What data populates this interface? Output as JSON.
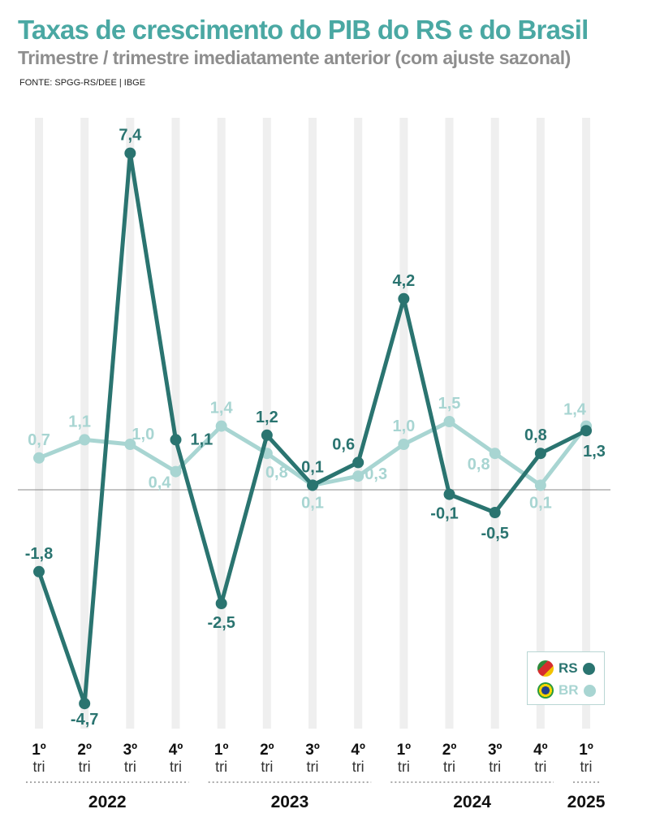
{
  "title": "Taxas de crescimento do PIB do RS e do Brasil",
  "subtitle": "Trimestre / trimestre imediatamente anterior (com ajuste sazonal)",
  "source": "FONTE: SPGG-RS/DEE | IBGE",
  "chart_data": {
    "type": "line",
    "quarters": [
      "1º",
      "2º",
      "3º",
      "4º",
      "1º",
      "2º",
      "3º",
      "4º",
      "1º",
      "2º",
      "3º",
      "4º",
      "1º"
    ],
    "quarter_suffix": "tri",
    "years": [
      {
        "label": "2022",
        "quarters": 4
      },
      {
        "label": "2023",
        "quarters": 4
      },
      {
        "label": "2024",
        "quarters": 4
      },
      {
        "label": "2025",
        "quarters": 1
      }
    ],
    "series": [
      {
        "name": "RS",
        "color": "#2a7470",
        "values": [
          -1.8,
          -4.7,
          7.4,
          1.1,
          -2.5,
          1.2,
          0.1,
          0.6,
          4.2,
          -0.1,
          -0.5,
          0.8,
          1.3
        ],
        "labels": [
          "-1,8",
          "-4,7",
          "7,4",
          "1,1",
          "-2,5",
          "1,2",
          "0,1",
          "0,6",
          "4,2",
          "-0,1",
          "-0,5",
          "0,8",
          "1,3"
        ]
      },
      {
        "name": "BR",
        "color": "#a8d5d2",
        "values": [
          0.7,
          1.1,
          1.0,
          0.4,
          1.4,
          0.8,
          0.1,
          0.3,
          1.0,
          1.5,
          0.8,
          0.1,
          1.4
        ],
        "labels": [
          "0,7",
          "1,1",
          "1,0",
          "0,4",
          "1,4",
          "0,8",
          "0,1",
          "0,3",
          "1,0",
          "1,5",
          "0,8",
          "0,1",
          "1,4"
        ]
      }
    ],
    "ylim": [
      -5.2,
      8.0
    ],
    "zero_line": true
  }
}
